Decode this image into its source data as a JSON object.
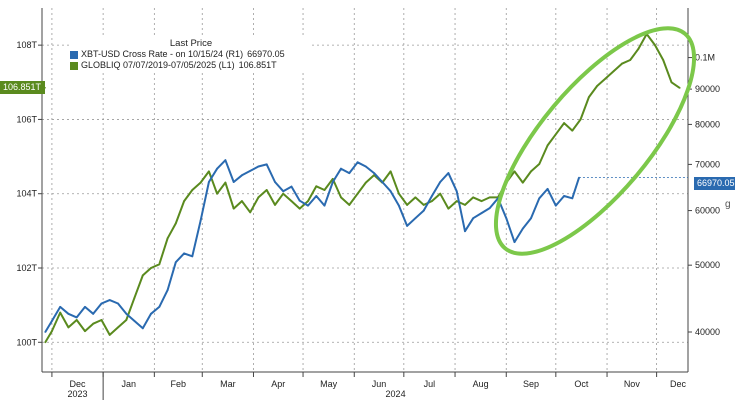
{
  "chart_data": {
    "type": "line",
    "legend": {
      "title": "Last Price",
      "entries": [
        {
          "label": "XBT-USD Cross Rate  -  on 10/15/24  (R1)",
          "value": "66970.05",
          "color": "#2a6ab0"
        },
        {
          "label": "GLOBLIQ 07/07/2019-07/05/2025    (L1)",
          "value": "106.851T",
          "color": "#5a8a1e"
        }
      ]
    },
    "x_axis": {
      "months": [
        "Dec",
        "Jan",
        "Feb",
        "Mar",
        "Apr",
        "May",
        "Jun",
        "Jul",
        "Aug",
        "Sep",
        "Oct",
        "Nov",
        "Dec"
      ],
      "years": [
        "2023",
        "2024"
      ],
      "range": [
        "2023-11-25",
        "2024-12-20"
      ]
    },
    "left_axis": {
      "ticks": [
        "100T",
        "102T",
        "104T",
        "106T",
        "108T"
      ],
      "range": [
        99.2,
        109.0
      ]
    },
    "right_axis": {
      "ticks": [
        "40000",
        "50000",
        "60000",
        "70000",
        "80000",
        "90000",
        "0.1M"
      ],
      "range": [
        35000,
        118000
      ],
      "scale": "log",
      "extra_label": "g"
    },
    "badges": {
      "left": "106.851T",
      "right": "66970.05"
    },
    "series": [
      {
        "name": "GLOBLIQ 07/07/2019-07/05/2025",
        "axis": "left",
        "color": "#5a8a1e",
        "x": [
          "2023-11-27",
          "2023-12-01",
          "2023-12-06",
          "2023-12-11",
          "2023-12-16",
          "2023-12-21",
          "2023-12-26",
          "2023-12-31",
          "2024-01-05",
          "2024-01-10",
          "2024-01-15",
          "2024-01-20",
          "2024-01-25",
          "2024-01-30",
          "2024-02-04",
          "2024-02-09",
          "2024-02-14",
          "2024-02-19",
          "2024-02-24",
          "2024-02-29",
          "2024-03-05",
          "2024-03-10",
          "2024-03-15",
          "2024-03-20",
          "2024-03-25",
          "2024-03-30",
          "2024-04-04",
          "2024-04-09",
          "2024-04-14",
          "2024-04-19",
          "2024-04-24",
          "2024-04-29",
          "2024-05-04",
          "2024-05-09",
          "2024-05-14",
          "2024-05-19",
          "2024-05-24",
          "2024-05-29",
          "2024-06-03",
          "2024-06-08",
          "2024-06-13",
          "2024-06-18",
          "2024-06-23",
          "2024-06-28",
          "2024-07-03",
          "2024-07-08",
          "2024-07-13",
          "2024-07-18",
          "2024-07-23",
          "2024-07-28",
          "2024-08-02",
          "2024-08-07",
          "2024-08-12",
          "2024-08-17",
          "2024-08-22",
          "2024-08-27",
          "2024-09-01",
          "2024-09-06",
          "2024-09-11",
          "2024-09-16",
          "2024-09-21",
          "2024-09-26",
          "2024-10-01",
          "2024-10-06",
          "2024-10-11",
          "2024-10-16",
          "2024-10-21",
          "2024-10-26",
          "2024-10-31",
          "2024-11-05",
          "2024-11-10",
          "2024-11-15",
          "2024-11-20",
          "2024-11-25",
          "2024-11-30",
          "2024-12-05",
          "2024-12-10",
          "2024-12-15"
        ],
        "y": [
          100.0,
          100.3,
          100.8,
          100.4,
          100.6,
          100.3,
          100.5,
          100.6,
          100.2,
          100.4,
          100.6,
          101.2,
          101.8,
          102.0,
          102.1,
          102.8,
          103.2,
          103.8,
          104.1,
          104.3,
          104.6,
          104.0,
          104.3,
          103.6,
          103.8,
          103.5,
          103.9,
          104.1,
          103.7,
          104.0,
          103.8,
          103.6,
          103.8,
          104.2,
          104.1,
          104.4,
          103.9,
          103.7,
          104.0,
          104.3,
          104.5,
          104.3,
          104.6,
          104.0,
          103.7,
          103.9,
          103.7,
          103.8,
          104.0,
          103.6,
          103.8,
          103.7,
          103.9,
          103.8,
          103.9,
          103.9,
          104.3,
          104.6,
          104.3,
          104.6,
          104.8,
          105.3,
          105.6,
          105.9,
          105.7,
          106.0,
          106.6,
          106.9,
          107.1,
          107.3,
          107.5,
          107.6,
          107.9,
          108.3,
          108.0,
          107.6,
          107.0,
          106.85
        ]
      },
      {
        "name": "XBT-USD Cross Rate",
        "axis": "right",
        "color": "#2a6ab0",
        "x": [
          "2023-11-27",
          "2023-12-01",
          "2023-12-06",
          "2023-12-11",
          "2023-12-16",
          "2023-12-21",
          "2023-12-26",
          "2023-12-31",
          "2024-01-05",
          "2024-01-10",
          "2024-01-15",
          "2024-01-20",
          "2024-01-25",
          "2024-01-30",
          "2024-02-04",
          "2024-02-09",
          "2024-02-14",
          "2024-02-19",
          "2024-02-24",
          "2024-02-29",
          "2024-03-05",
          "2024-03-10",
          "2024-03-15",
          "2024-03-20",
          "2024-03-25",
          "2024-03-30",
          "2024-04-04",
          "2024-04-09",
          "2024-04-14",
          "2024-04-19",
          "2024-04-24",
          "2024-04-29",
          "2024-05-04",
          "2024-05-09",
          "2024-05-14",
          "2024-05-19",
          "2024-05-24",
          "2024-05-29",
          "2024-06-03",
          "2024-06-08",
          "2024-06-13",
          "2024-06-18",
          "2024-06-23",
          "2024-06-28",
          "2024-07-03",
          "2024-07-08",
          "2024-07-13",
          "2024-07-18",
          "2024-07-23",
          "2024-07-28",
          "2024-08-02",
          "2024-08-07",
          "2024-08-12",
          "2024-08-17",
          "2024-08-22",
          "2024-08-27",
          "2024-09-01",
          "2024-09-06",
          "2024-09-11",
          "2024-09-16",
          "2024-09-21",
          "2024-09-26",
          "2024-10-01",
          "2024-10-06",
          "2024-10-11",
          "2024-10-15"
        ],
        "y": [
          40000,
          41500,
          43500,
          42500,
          42000,
          43500,
          42500,
          44000,
          44500,
          44000,
          42500,
          41500,
          40500,
          42500,
          43500,
          46000,
          50500,
          52000,
          51500,
          58000,
          66000,
          69000,
          71000,
          66000,
          67500,
          68500,
          69500,
          70000,
          66000,
          64000,
          65000,
          62000,
          61000,
          63000,
          61000,
          66000,
          69000,
          68000,
          70500,
          69500,
          68000,
          66000,
          64000,
          61000,
          57000,
          58500,
          60000,
          63000,
          66000,
          68000,
          64000,
          56000,
          58500,
          59500,
          60500,
          62500,
          58500,
          54000,
          56500,
          58500,
          62500,
          64500,
          61000,
          63000,
          62500,
          66970
        ]
      }
    ],
    "annotation": {
      "type": "ellipse",
      "color": "#7cc84a"
    }
  }
}
